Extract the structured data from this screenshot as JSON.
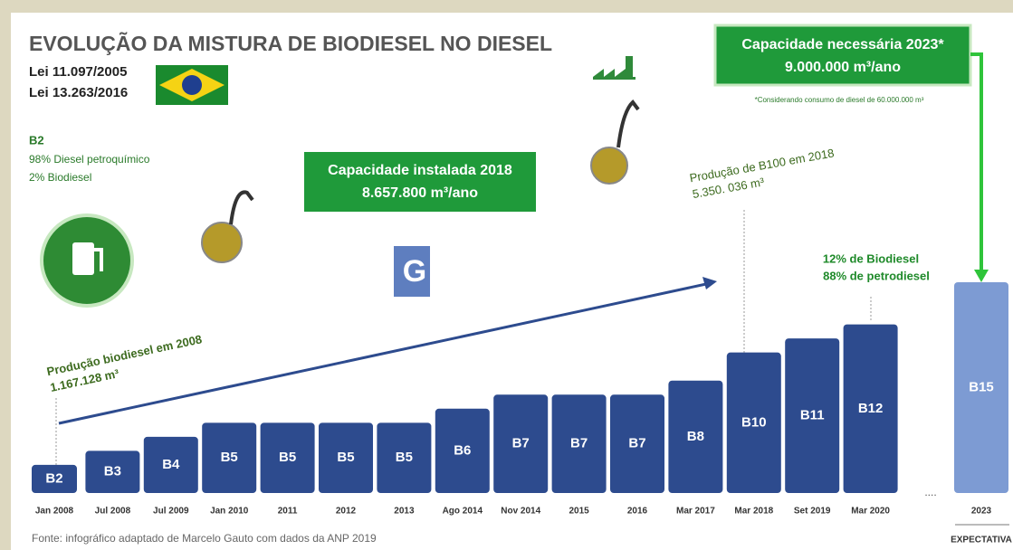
{
  "chart_data": {
    "type": "bar",
    "title": "EVOLUÇÃO DA MISTURA DE BIODIESEL NO DIESEL",
    "laws": [
      "Lei 11.097/2005",
      "Lei 13.263/2016"
    ],
    "b2_note": {
      "title": "B2",
      "lines": [
        "98% Diesel petroquímico",
        "2% Biodiesel"
      ]
    },
    "installed_capacity": {
      "title": "Capacidade instalada 2018",
      "value": "8.657.800 m³/ano"
    },
    "required_capacity": {
      "title": "Capacidade necessária 2023*",
      "value": "9.000.000 m³/ano",
      "footnote": "*Considerando consumo de diesel de 60.000.000 m³"
    },
    "annotations": [
      {
        "title": "Produção biodiesel em 2008",
        "value": "1.167.128 m³"
      },
      {
        "title": "Produção de B100 em 2018",
        "value": "5.350. 036 m³"
      },
      {
        "lines": [
          "12% de Biodiesel",
          "88% de petrodiesel"
        ]
      }
    ],
    "logo": "G",
    "ellipsis": "....",
    "expectation": "EXPECTATIVA",
    "source": "Fonte: infográfico adaptado de Marcelo Gauto com dados da ANP 2019",
    "categories": [
      "Jan 2008",
      "Jul 2008",
      "Jul 2009",
      "Jan 2010",
      "2011",
      "2012",
      "2013",
      "Ago 2014",
      "Nov 2014",
      "2015",
      "2016",
      "Mar 2017",
      "Mar 2018",
      "Set 2019",
      "Mar 2020",
      "2023"
    ],
    "values": [
      2,
      3,
      4,
      5,
      5,
      5,
      5,
      6,
      7,
      7,
      7,
      8,
      10,
      11,
      12,
      15
    ],
    "value_labels": [
      "B2",
      "B3",
      "B4",
      "B5",
      "B5",
      "B5",
      "B5",
      "B6",
      "B7",
      "B7",
      "B7",
      "B8",
      "B10",
      "B11",
      "B12",
      "B15"
    ],
    "colors": [
      "#2d4b8e",
      "#2d4b8e",
      "#2d4b8e",
      "#2d4b8e",
      "#2d4b8e",
      "#2d4b8e",
      "#2d4b8e",
      "#2d4b8e",
      "#2d4b8e",
      "#2d4b8e",
      "#2d4b8e",
      "#2d4b8e",
      "#2d4b8e",
      "#2d4b8e",
      "#2d4b8e",
      "#7d9bd3"
    ],
    "ylim": [
      0,
      15
    ]
  }
}
